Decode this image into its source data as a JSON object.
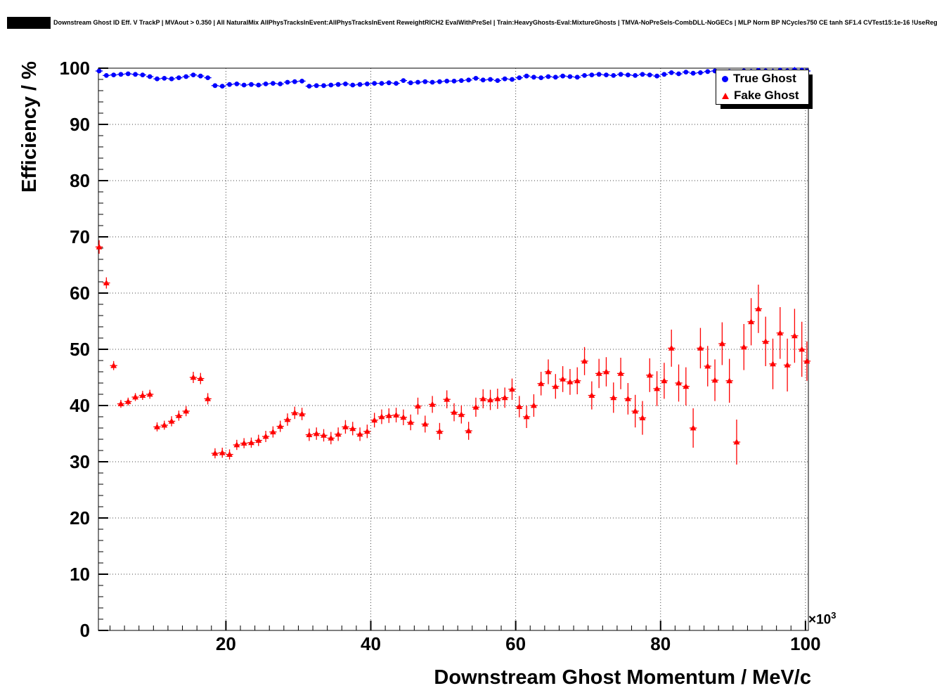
{
  "page": {
    "title": "Downstream Ghost ID Eff. V TrackP | MVAout > 0.350 | All NaturalMix AllPhysTracksInEvent:AllPhysTracksInEvent ReweightRICH2 EvalWithPreSel | Train:HeavyGhosts-Eval:MixtureGhosts | TMVA-NoPreSels-CombDLL-NoGECs | MLP Norm BP NCycles750 CE tanh SF1.4 CVTest15:1e-16 !UseReg"
  },
  "chart_data": {
    "type": "scatter",
    "title": "Downstream Ghost ID Eff. V TrackP | MVAout > 0.350 | All NaturalMix AllPhysTracksInEvent:AllPhysTracksInEvent ReweightRICH2 EvalWithPreSel | Train:HeavyGhosts-Eval:MixtureGhosts | TMVA-NoPreSels-CombDLL-NoGECs | MLP Norm BP NCycles750 CE tanh SF1.4 CVTest15:1e-16 !UseReg",
    "xlabel": "Downstream Ghost Momentum / MeV/c",
    "ylabel": "Efficiency / %",
    "x_exponent": {
      "base": "×10",
      "power": "3"
    },
    "xlim": [
      2.4,
      100.4
    ],
    "ylim": [
      0,
      100
    ],
    "x_ticks": [
      20,
      40,
      60,
      80,
      100
    ],
    "y_ticks": [
      0,
      10,
      20,
      30,
      40,
      50,
      60,
      70,
      80,
      90,
      100
    ],
    "x_minor_step": 2,
    "y_minor_step": 2,
    "grid": true,
    "grid_style": "dotted",
    "legend_position": "top-right",
    "colors": {
      "true_ghost": "#0000ff",
      "fake_ghost": "#ff0000",
      "grid": "#444444",
      "frame": "#000000"
    },
    "series": [
      {
        "name": "True Ghost",
        "marker": "circle",
        "color": "#0000ff",
        "x_halfwidth": 0.5,
        "points": [
          [
            2.5,
            99.5,
            0.1
          ],
          [
            3.5,
            98.7,
            0.15
          ],
          [
            4.5,
            98.8,
            0.15
          ],
          [
            5.5,
            98.9,
            0.15
          ],
          [
            6.5,
            99.0,
            0.15
          ],
          [
            7.5,
            98.9,
            0.15
          ],
          [
            8.5,
            98.8,
            0.15
          ],
          [
            9.5,
            98.5,
            0.15
          ],
          [
            10.5,
            98.1,
            0.15
          ],
          [
            11.5,
            98.2,
            0.15
          ],
          [
            12.5,
            98.1,
            0.15
          ],
          [
            13.5,
            98.3,
            0.15
          ],
          [
            14.5,
            98.5,
            0.15
          ],
          [
            15.5,
            98.8,
            0.15
          ],
          [
            16.5,
            98.6,
            0.15
          ],
          [
            17.5,
            98.3,
            0.15
          ],
          [
            18.5,
            96.9,
            0.2
          ],
          [
            19.5,
            96.8,
            0.2
          ],
          [
            20.5,
            97.1,
            0.2
          ],
          [
            21.5,
            97.2,
            0.2
          ],
          [
            22.5,
            97.0,
            0.2
          ],
          [
            23.5,
            97.1,
            0.2
          ],
          [
            24.5,
            97.0,
            0.2
          ],
          [
            25.5,
            97.2,
            0.2
          ],
          [
            26.5,
            97.3,
            0.2
          ],
          [
            27.5,
            97.2,
            0.2
          ],
          [
            28.5,
            97.5,
            0.2
          ],
          [
            29.5,
            97.6,
            0.2
          ],
          [
            30.5,
            97.7,
            0.2
          ],
          [
            31.5,
            96.8,
            0.2
          ],
          [
            32.5,
            96.9,
            0.2
          ],
          [
            33.5,
            96.9,
            0.2
          ],
          [
            34.5,
            97.0,
            0.2
          ],
          [
            35.5,
            97.1,
            0.2
          ],
          [
            36.5,
            97.2,
            0.2
          ],
          [
            37.5,
            97.0,
            0.2
          ],
          [
            38.5,
            97.1,
            0.2
          ],
          [
            39.5,
            97.2,
            0.2
          ],
          [
            40.5,
            97.3,
            0.2
          ],
          [
            41.5,
            97.3,
            0.2
          ],
          [
            42.5,
            97.4,
            0.2
          ],
          [
            43.5,
            97.3,
            0.2
          ],
          [
            44.5,
            97.8,
            0.2
          ],
          [
            45.5,
            97.4,
            0.2
          ],
          [
            46.5,
            97.5,
            0.2
          ],
          [
            47.5,
            97.6,
            0.2
          ],
          [
            48.5,
            97.5,
            0.2
          ],
          [
            49.5,
            97.6,
            0.25
          ],
          [
            50.5,
            97.7,
            0.25
          ],
          [
            51.5,
            97.7,
            0.25
          ],
          [
            52.5,
            97.8,
            0.25
          ],
          [
            53.5,
            97.9,
            0.25
          ],
          [
            54.5,
            98.2,
            0.25
          ],
          [
            55.5,
            97.9,
            0.25
          ],
          [
            56.5,
            98.0,
            0.25
          ],
          [
            57.5,
            97.8,
            0.25
          ],
          [
            58.5,
            98.1,
            0.25
          ],
          [
            59.5,
            98.0,
            0.25
          ],
          [
            60.5,
            98.3,
            0.25
          ],
          [
            61.5,
            98.6,
            0.25
          ],
          [
            62.5,
            98.4,
            0.25
          ],
          [
            63.5,
            98.3,
            0.25
          ],
          [
            64.5,
            98.5,
            0.25
          ],
          [
            65.5,
            98.4,
            0.3
          ],
          [
            66.5,
            98.6,
            0.3
          ],
          [
            67.5,
            98.5,
            0.3
          ],
          [
            68.5,
            98.4,
            0.3
          ],
          [
            69.5,
            98.7,
            0.3
          ],
          [
            70.5,
            98.8,
            0.3
          ],
          [
            71.5,
            98.9,
            0.3
          ],
          [
            72.5,
            98.8,
            0.3
          ],
          [
            73.5,
            98.7,
            0.3
          ],
          [
            74.5,
            98.9,
            0.3
          ],
          [
            75.5,
            98.8,
            0.3
          ],
          [
            76.5,
            98.7,
            0.35
          ],
          [
            77.5,
            98.9,
            0.35
          ],
          [
            78.5,
            98.8,
            0.35
          ],
          [
            79.5,
            98.6,
            0.35
          ],
          [
            80.5,
            98.9,
            0.35
          ],
          [
            81.5,
            99.2,
            0.35
          ],
          [
            82.5,
            99.0,
            0.35
          ],
          [
            83.5,
            99.3,
            0.35
          ],
          [
            84.5,
            99.1,
            0.4
          ],
          [
            85.5,
            99.2,
            0.4
          ],
          [
            86.5,
            99.4,
            0.4
          ],
          [
            87.5,
            99.5,
            0.4
          ],
          [
            88.5,
            99.3,
            0.4
          ],
          [
            89.5,
            99.4,
            0.4
          ],
          [
            90.5,
            99.2,
            0.45
          ],
          [
            91.5,
            99.5,
            0.45
          ],
          [
            92.5,
            99.4,
            0.45
          ],
          [
            93.5,
            99.6,
            0.45
          ],
          [
            94.5,
            99.5,
            0.5
          ],
          [
            95.5,
            99.4,
            0.5
          ],
          [
            96.5,
            99.6,
            0.5
          ],
          [
            97.5,
            99.5,
            0.5
          ],
          [
            98.5,
            99.7,
            0.5
          ],
          [
            99.5,
            99.6,
            0.5
          ],
          [
            100.2,
            99.5,
            0.5
          ]
        ]
      },
      {
        "name": "Fake Ghost",
        "marker": "triangle",
        "color": "#ff0000",
        "x_halfwidth": 0.5,
        "points": [
          [
            2.5,
            68.2,
            1.2
          ],
          [
            3.5,
            61.8,
            1.0
          ],
          [
            4.5,
            47.1,
            0.8
          ],
          [
            5.5,
            40.3,
            0.7
          ],
          [
            6.5,
            40.7,
            0.7
          ],
          [
            7.5,
            41.5,
            0.7
          ],
          [
            8.5,
            41.8,
            0.8
          ],
          [
            9.5,
            42.0,
            0.8
          ],
          [
            10.5,
            36.2,
            0.8
          ],
          [
            11.5,
            36.5,
            0.8
          ],
          [
            12.5,
            37.2,
            0.9
          ],
          [
            13.5,
            38.2,
            0.9
          ],
          [
            14.5,
            39.0,
            0.9
          ],
          [
            15.5,
            45.0,
            1.0
          ],
          [
            16.5,
            44.8,
            1.0
          ],
          [
            17.5,
            41.2,
            1.0
          ],
          [
            18.5,
            31.5,
            0.9
          ],
          [
            19.5,
            31.6,
            0.9
          ],
          [
            20.5,
            31.3,
            0.9
          ],
          [
            21.5,
            33.0,
            0.9
          ],
          [
            22.5,
            33.3,
            0.9
          ],
          [
            23.5,
            33.4,
            0.9
          ],
          [
            24.5,
            33.8,
            1.0
          ],
          [
            25.5,
            34.5,
            1.0
          ],
          [
            26.5,
            35.3,
            1.0
          ],
          [
            27.5,
            36.3,
            1.0
          ],
          [
            28.5,
            37.5,
            1.1
          ],
          [
            29.5,
            38.7,
            1.1
          ],
          [
            30.5,
            38.5,
            1.1
          ],
          [
            31.5,
            34.8,
            1.1
          ],
          [
            32.5,
            35.0,
            1.1
          ],
          [
            33.5,
            34.7,
            1.1
          ],
          [
            34.5,
            34.2,
            1.1
          ],
          [
            35.5,
            34.9,
            1.2
          ],
          [
            36.5,
            36.2,
            1.2
          ],
          [
            37.5,
            35.9,
            1.2
          ],
          [
            38.5,
            34.9,
            1.2
          ],
          [
            39.5,
            35.4,
            1.2
          ],
          [
            40.5,
            37.4,
            1.3
          ],
          [
            41.5,
            38.0,
            1.3
          ],
          [
            42.5,
            38.2,
            1.3
          ],
          [
            43.5,
            38.3,
            1.3
          ],
          [
            44.5,
            37.9,
            1.4
          ],
          [
            45.5,
            37.0,
            1.4
          ],
          [
            46.5,
            39.9,
            1.5
          ],
          [
            47.5,
            36.7,
            1.5
          ],
          [
            48.5,
            40.2,
            1.5
          ],
          [
            49.5,
            35.4,
            1.5
          ],
          [
            50.5,
            41.1,
            1.6
          ],
          [
            51.5,
            38.8,
            1.6
          ],
          [
            52.5,
            38.4,
            1.6
          ],
          [
            53.5,
            35.5,
            1.6
          ],
          [
            54.5,
            39.7,
            1.7
          ],
          [
            55.5,
            41.2,
            1.7
          ],
          [
            56.5,
            41.0,
            1.8
          ],
          [
            57.5,
            41.2,
            1.8
          ],
          [
            58.5,
            41.4,
            1.8
          ],
          [
            59.5,
            42.9,
            1.9
          ],
          [
            60.5,
            39.8,
            1.9
          ],
          [
            61.5,
            38.0,
            2.0
          ],
          [
            62.5,
            40.0,
            2.0
          ],
          [
            63.5,
            43.9,
            2.1
          ],
          [
            64.5,
            46.0,
            2.2
          ],
          [
            65.5,
            43.4,
            2.2
          ],
          [
            66.5,
            44.7,
            2.3
          ],
          [
            67.5,
            44.2,
            2.3
          ],
          [
            68.5,
            44.4,
            2.4
          ],
          [
            69.5,
            47.9,
            2.5
          ],
          [
            70.5,
            41.8,
            2.5
          ],
          [
            71.5,
            45.7,
            2.6
          ],
          [
            72.5,
            46.0,
            2.6
          ],
          [
            73.5,
            41.4,
            2.7
          ],
          [
            74.5,
            45.7,
            2.8
          ],
          [
            75.5,
            41.2,
            2.8
          ],
          [
            76.5,
            39.0,
            2.9
          ],
          [
            77.5,
            37.8,
            3.0
          ],
          [
            78.5,
            45.4,
            3.0
          ],
          [
            79.5,
            43.0,
            3.1
          ],
          [
            80.5,
            44.4,
            3.2
          ],
          [
            81.5,
            50.2,
            3.3
          ],
          [
            82.5,
            44.0,
            3.3
          ],
          [
            83.5,
            43.4,
            3.4
          ],
          [
            84.5,
            36.0,
            3.5
          ],
          [
            85.5,
            50.2,
            3.6
          ],
          [
            86.5,
            47.0,
            3.6
          ],
          [
            87.5,
            44.5,
            3.7
          ],
          [
            88.5,
            51.0,
            3.8
          ],
          [
            89.5,
            44.4,
            3.9
          ],
          [
            90.5,
            33.5,
            4.0
          ],
          [
            91.5,
            50.4,
            4.1
          ],
          [
            92.5,
            54.9,
            4.2
          ],
          [
            93.5,
            57.2,
            4.3
          ],
          [
            94.5,
            51.4,
            4.4
          ],
          [
            95.5,
            47.4,
            4.5
          ],
          [
            96.5,
            52.9,
            4.6
          ],
          [
            97.5,
            47.2,
            4.7
          ],
          [
            98.5,
            52.4,
            4.8
          ],
          [
            99.5,
            50.0,
            4.9
          ],
          [
            100.2,
            47.9,
            3.5
          ]
        ]
      }
    ]
  }
}
